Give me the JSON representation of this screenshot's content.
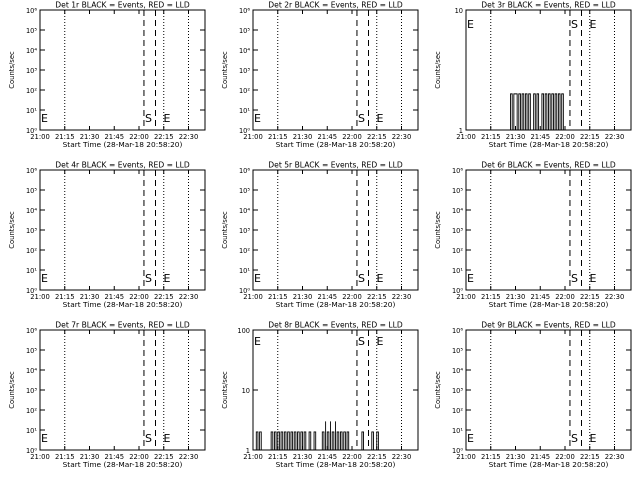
{
  "figure": {
    "start_time_label": "Start Time (28-Mar-18 20:58:20)",
    "ylabel": "Counts/sec",
    "x_ticks": [
      "21:00",
      "21:15",
      "21:30",
      "21:45",
      "22:00",
      "22:15",
      "22:30"
    ],
    "x_range": [
      "21:00",
      "22:40"
    ],
    "markers": {
      "dotted_lines": [
        "21:00",
        "21:15",
        "22:15",
        "22:30"
      ],
      "dashed_lines": [
        "22:03",
        "22:10"
      ],
      "letters": [
        "E",
        "S",
        "E"
      ]
    }
  },
  "chart_data": [
    {
      "type": "line",
      "title": "Det 1r BLACK = Events, RED = LLD",
      "ylabel": "Counts/sec",
      "xlabel": "Start Time (28-Mar-18 20:58:20)",
      "y_scale": "log",
      "ylim": [
        1,
        1000000
      ],
      "y_ticks": [
        "10⁰",
        "10¹",
        "10²",
        "10³",
        "10⁴",
        "10⁵",
        "10⁶"
      ],
      "x_ticks": [
        "21:00",
        "21:15",
        "21:30",
        "21:45",
        "22:00",
        "22:15",
        "22:30"
      ],
      "series": []
    },
    {
      "type": "line",
      "title": "Det 2r BLACK = Events, RED = LLD",
      "ylabel": "Counts/sec",
      "xlabel": "Start Time (28-Mar-18 20:58:20)",
      "y_scale": "log",
      "ylim": [
        1,
        1000000
      ],
      "y_ticks": [
        "10⁰",
        "10¹",
        "10²",
        "10³",
        "10⁴",
        "10⁵",
        "10⁶"
      ],
      "x_ticks": [
        "21:00",
        "21:15",
        "21:30",
        "21:45",
        "22:00",
        "22:15",
        "22:30"
      ],
      "series": []
    },
    {
      "type": "line",
      "title": "Det 3r BLACK = Events, RED = LLD",
      "ylabel": "Counts/sec",
      "xlabel": "Start Time (28-Mar-18 20:58:20)",
      "y_scale": "log",
      "ylim": [
        1,
        10
      ],
      "y_ticks": [
        "1",
        "10"
      ],
      "x_ticks": [
        "21:00",
        "21:15",
        "21:30",
        "21:45",
        "22:00",
        "22:15",
        "22:30"
      ],
      "series": [
        {
          "bursts": [
            [
              "21:27",
              "21:28"
            ],
            [
              "21:29",
              "21:31"
            ],
            [
              "21:32",
              "21:33"
            ],
            [
              "21:34",
              "21:35"
            ],
            [
              "21:36",
              "21:37"
            ],
            [
              "21:38",
              "21:39"
            ],
            [
              "21:41",
              "21:42"
            ],
            [
              "21:43",
              "21:44"
            ],
            [
              "21:46",
              "21:47"
            ],
            [
              "21:48",
              "21:49"
            ],
            [
              "21:50",
              "21:51"
            ],
            [
              "21:52",
              "21:53"
            ],
            [
              "21:54",
              "21:55"
            ],
            [
              "21:56",
              "21:57"
            ],
            [
              "21:58",
              "21:59"
            ]
          ],
          "burst_level": 2,
          "baseline": 1
        }
      ]
    },
    {
      "type": "line",
      "title": "Det 4r BLACK = Events, RED = LLD",
      "ylabel": "Counts/sec",
      "xlabel": "Start Time (28-Mar-18 20:58:20)",
      "y_scale": "log",
      "ylim": [
        1,
        1000000
      ],
      "y_ticks": [
        "10⁰",
        "10¹",
        "10²",
        "10³",
        "10⁴",
        "10⁵",
        "10⁶"
      ],
      "x_ticks": [
        "21:00",
        "21:15",
        "21:30",
        "21:45",
        "22:00",
        "22:15",
        "22:30"
      ],
      "series": []
    },
    {
      "type": "line",
      "title": "Det 5r BLACK = Events, RED = LLD",
      "ylabel": "Counts/sec",
      "xlabel": "Start Time (28-Mar-18 20:58:20)",
      "y_scale": "log",
      "ylim": [
        1,
        1000000
      ],
      "y_ticks": [
        "10⁰",
        "10¹",
        "10²",
        "10³",
        "10⁴",
        "10⁵",
        "10⁶"
      ],
      "x_ticks": [
        "21:00",
        "21:15",
        "21:30",
        "21:45",
        "22:00",
        "22:15",
        "22:30"
      ],
      "series": []
    },
    {
      "type": "line",
      "title": "Det 6r BLACK = Events, RED = LLD",
      "ylabel": "Counts/sec",
      "xlabel": "Start Time (28-Mar-18 20:58:20)",
      "y_scale": "log",
      "ylim": [
        1,
        1000000
      ],
      "y_ticks": [
        "10⁰",
        "10¹",
        "10²",
        "10³",
        "10⁴",
        "10⁵",
        "10⁶"
      ],
      "x_ticks": [
        "21:00",
        "21:15",
        "21:30",
        "21:45",
        "22:00",
        "22:15",
        "22:30"
      ],
      "series": []
    },
    {
      "type": "line",
      "title": "Det 7r BLACK = Events, RED = LLD",
      "ylabel": "Counts/sec",
      "xlabel": "Start Time (28-Mar-18 20:58:20)",
      "y_scale": "log",
      "ylim": [
        1,
        1000000
      ],
      "y_ticks": [
        "10⁰",
        "10¹",
        "10²",
        "10³",
        "10⁴",
        "10⁵",
        "10⁶"
      ],
      "x_ticks": [
        "21:00",
        "21:15",
        "21:30",
        "21:45",
        "22:00",
        "22:15",
        "22:30"
      ],
      "series": []
    },
    {
      "type": "line",
      "title": "Det 8r BLACK = Events, RED = LLD",
      "ylabel": "Counts/sec",
      "xlabel": "Start Time (28-Mar-18 20:58:20)",
      "y_scale": "log",
      "ylim": [
        1,
        100
      ],
      "y_ticks": [
        "1",
        "10",
        "100"
      ],
      "x_ticks": [
        "21:00",
        "21:15",
        "21:30",
        "21:45",
        "22:00",
        "22:15",
        "22:30"
      ],
      "series": [
        {
          "bursts": [
            [
              "21:02",
              "21:03"
            ],
            [
              "21:04",
              "21:05"
            ],
            [
              "21:11",
              "21:12"
            ],
            [
              "21:13",
              "21:14"
            ],
            [
              "21:15",
              "21:16"
            ],
            [
              "21:17",
              "21:18"
            ],
            [
              "21:19",
              "21:20"
            ],
            [
              "21:21",
              "21:22"
            ],
            [
              "21:23",
              "21:24"
            ],
            [
              "21:25",
              "21:26"
            ],
            [
              "21:27",
              "21:28"
            ],
            [
              "21:29",
              "21:30"
            ],
            [
              "21:31",
              "21:32"
            ],
            [
              "21:34",
              "21:35"
            ],
            [
              "21:37",
              "21:38"
            ],
            [
              "21:42",
              "21:43"
            ],
            [
              "21:45",
              "21:46"
            ],
            [
              "21:48",
              "21:49"
            ],
            [
              "21:51",
              "21:52"
            ],
            [
              "21:53",
              "21:54"
            ],
            [
              "21:55",
              "21:56"
            ],
            [
              "21:57",
              "21:58"
            ],
            [
              "22:06",
              "22:07"
            ],
            [
              "22:12",
              "22:13"
            ],
            [
              "22:15",
              "22:16"
            ]
          ],
          "burst_level": 2,
          "spikes": [
            [
              "21:44",
              3
            ],
            [
              "21:47",
              3
            ],
            [
              "21:50",
              3
            ]
          ],
          "baseline": 1
        }
      ]
    },
    {
      "type": "line",
      "title": "Det 9r BLACK = Events, RED = LLD",
      "ylabel": "Counts/sec",
      "xlabel": "Start Time (28-Mar-18 20:58:20)",
      "y_scale": "log",
      "ylim": [
        1,
        1000000
      ],
      "y_ticks": [
        "10⁰",
        "10¹",
        "10²",
        "10³",
        "10⁴",
        "10⁵",
        "10⁶"
      ],
      "x_ticks": [
        "21:00",
        "21:15",
        "21:30",
        "21:45",
        "22:00",
        "22:15",
        "22:30"
      ],
      "series": []
    }
  ]
}
